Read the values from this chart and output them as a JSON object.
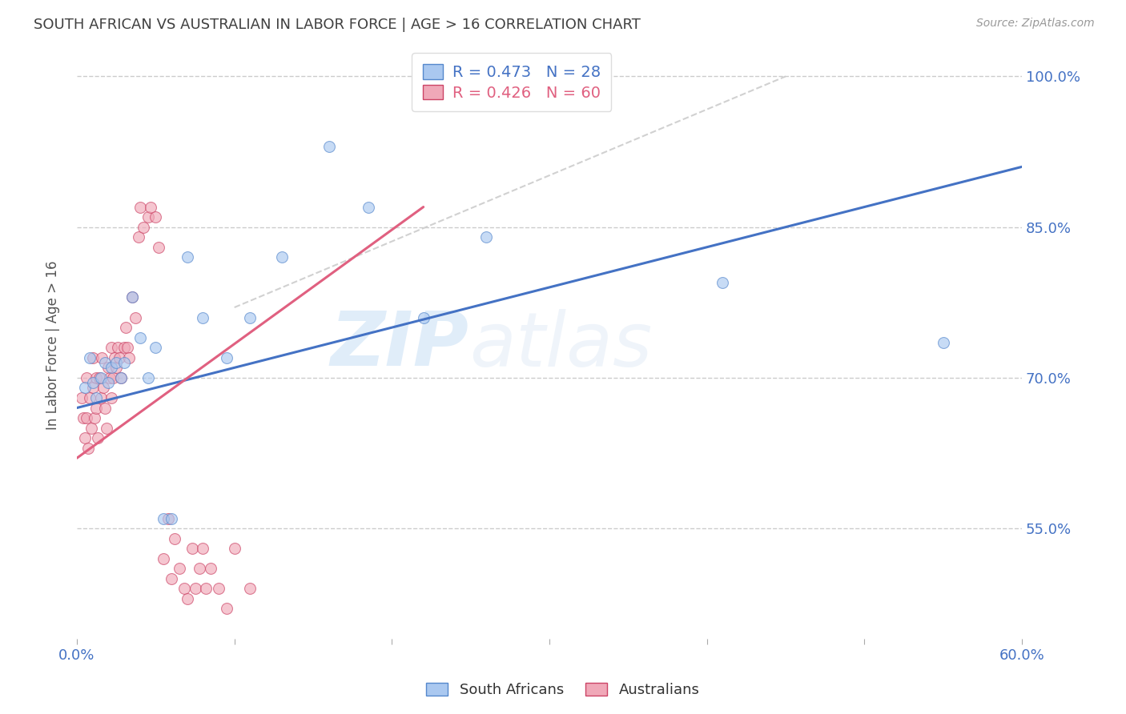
{
  "title": "SOUTH AFRICAN VS AUSTRALIAN IN LABOR FORCE | AGE > 16 CORRELATION CHART",
  "source": "Source: ZipAtlas.com",
  "ylabel": "In Labor Force | Age > 16",
  "watermark_zip": "ZIP",
  "watermark_atlas": "atlas",
  "x_min": 0.0,
  "x_max": 0.6,
  "y_min": 0.44,
  "y_max": 1.025,
  "y_ticks": [
    0.55,
    0.7,
    0.85,
    1.0
  ],
  "y_tick_labels": [
    "55.0%",
    "70.0%",
    "85.0%",
    "100.0%"
  ],
  "x_ticks": [
    0.0,
    0.1,
    0.2,
    0.3,
    0.4,
    0.5,
    0.6
  ],
  "x_tick_labels": [
    "0.0%",
    "",
    "",
    "",
    "",
    "",
    "60.0%"
  ],
  "grid_color": "#cccccc",
  "background_color": "#ffffff",
  "sa_face_color": "#aac8f0",
  "sa_edge_color": "#5588cc",
  "au_face_color": "#f0a8b8",
  "au_edge_color": "#cc4466",
  "sa_line_color": "#4472C4",
  "au_line_color": "#e06080",
  "diag_line_color": "#cccccc",
  "axis_label_color": "#4472C4",
  "title_color": "#404040",
  "legend_blue_text": "R = 0.473   N = 28",
  "legend_pink_text": "R = 0.426   N = 60",
  "legend_blue_label": "South Africans",
  "legend_pink_label": "Australians",
  "south_africans_x": [
    0.005,
    0.008,
    0.01,
    0.012,
    0.015,
    0.018,
    0.02,
    0.022,
    0.025,
    0.028,
    0.03,
    0.035,
    0.04,
    0.045,
    0.05,
    0.055,
    0.06,
    0.07,
    0.08,
    0.095,
    0.11,
    0.13,
    0.16,
    0.185,
    0.22,
    0.26,
    0.41,
    0.55
  ],
  "south_africans_y": [
    0.69,
    0.72,
    0.695,
    0.68,
    0.7,
    0.715,
    0.695,
    0.71,
    0.715,
    0.7,
    0.715,
    0.78,
    0.74,
    0.7,
    0.73,
    0.56,
    0.56,
    0.82,
    0.76,
    0.72,
    0.76,
    0.82,
    0.93,
    0.87,
    0.76,
    0.84,
    0.795,
    0.735
  ],
  "australians_x": [
    0.003,
    0.004,
    0.005,
    0.006,
    0.006,
    0.007,
    0.008,
    0.009,
    0.01,
    0.01,
    0.011,
    0.012,
    0.012,
    0.013,
    0.014,
    0.015,
    0.016,
    0.017,
    0.018,
    0.019,
    0.02,
    0.021,
    0.022,
    0.022,
    0.023,
    0.024,
    0.025,
    0.026,
    0.027,
    0.028,
    0.03,
    0.031,
    0.032,
    0.033,
    0.035,
    0.037,
    0.039,
    0.04,
    0.042,
    0.045,
    0.047,
    0.05,
    0.052,
    0.055,
    0.058,
    0.06,
    0.062,
    0.065,
    0.068,
    0.07,
    0.073,
    0.075,
    0.078,
    0.08,
    0.082,
    0.085,
    0.09,
    0.095,
    0.1,
    0.11
  ],
  "australians_y": [
    0.68,
    0.66,
    0.64,
    0.7,
    0.66,
    0.63,
    0.68,
    0.65,
    0.72,
    0.69,
    0.66,
    0.7,
    0.67,
    0.64,
    0.7,
    0.68,
    0.72,
    0.69,
    0.67,
    0.65,
    0.71,
    0.7,
    0.73,
    0.68,
    0.7,
    0.72,
    0.71,
    0.73,
    0.72,
    0.7,
    0.73,
    0.75,
    0.73,
    0.72,
    0.78,
    0.76,
    0.84,
    0.87,
    0.85,
    0.86,
    0.87,
    0.86,
    0.83,
    0.52,
    0.56,
    0.5,
    0.54,
    0.51,
    0.49,
    0.48,
    0.53,
    0.49,
    0.51,
    0.53,
    0.49,
    0.51,
    0.49,
    0.47,
    0.53,
    0.49
  ],
  "sa_trend": [
    0.0,
    0.6,
    0.67,
    0.91
  ],
  "au_trend": [
    0.0,
    0.22,
    0.62,
    0.87
  ],
  "diag_trend": [
    0.1,
    0.45,
    0.77,
    1.0
  ],
  "marker_size": 100,
  "marker_alpha": 0.65,
  "line_width": 2.2
}
